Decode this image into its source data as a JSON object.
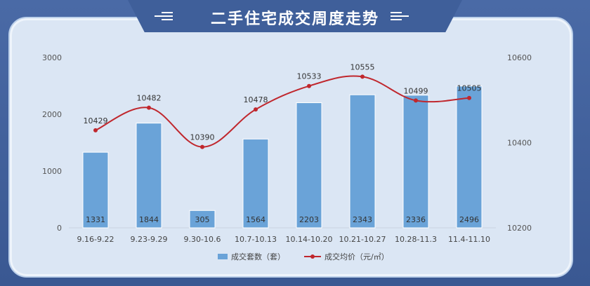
{
  "header": {
    "title": "二手住宅成交周度走势"
  },
  "colors": {
    "bar": "#6aa3d8",
    "line": "#c0272d",
    "panel": "#dbe6f4"
  },
  "chart_data": {
    "type": "bar+line",
    "title": "",
    "categories": [
      "9.16-9.22",
      "9.23-9.29",
      "9.30-10.6",
      "10.7-10.13",
      "10.14-10.20",
      "10.21-10.27",
      "10.28-11.3",
      "11.4-11.10"
    ],
    "series": [
      {
        "name": "成交套数（套）",
        "type": "bar",
        "axis": "left",
        "values": [
          1331,
          1844,
          305,
          1564,
          2203,
          2343,
          2336,
          2496
        ]
      },
      {
        "name": "成交均价（元/㎡）",
        "type": "line",
        "axis": "right",
        "values": [
          10429,
          10482,
          10390,
          10478,
          10533,
          10555,
          10499,
          10505
        ]
      }
    ],
    "left_axis": {
      "ylim": [
        0,
        3000
      ],
      "ticks": [
        "0",
        "1000",
        "2000",
        "3000"
      ]
    },
    "right_axis": {
      "ylim": [
        10200,
        10600
      ],
      "ticks": [
        "10200",
        "10400",
        "10600"
      ]
    },
    "legend": {
      "placement": "bottom-center",
      "bar_label": "成交套数（套）",
      "line_label": "成交均价（元/㎡）"
    },
    "grid": false
  }
}
